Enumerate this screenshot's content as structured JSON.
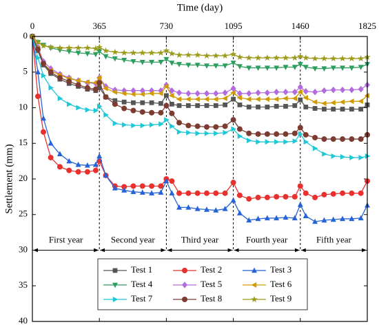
{
  "chart_data": {
    "type": "line",
    "x_label": "Time (day)",
    "y_label": "Settlement (mm)",
    "x": [
      0,
      30,
      60,
      100,
      150,
      200,
      250,
      300,
      345,
      365,
      400,
      450,
      500,
      550,
      600,
      650,
      700,
      730,
      760,
      800,
      850,
      900,
      950,
      1000,
      1050,
      1095,
      1130,
      1180,
      1230,
      1280,
      1330,
      1380,
      1430,
      1460,
      1490,
      1540,
      1590,
      1640,
      1690,
      1740,
      1790,
      1825
    ],
    "xlim": [
      0,
      1825
    ],
    "xticks": [
      0,
      365,
      730,
      1095,
      1460,
      1825
    ],
    "ylim": [
      0,
      40
    ],
    "yticks": [
      0,
      5,
      10,
      15,
      20,
      25,
      30,
      35,
      40
    ],
    "y_inverted": true,
    "x_axis_position": "top",
    "dividers": [
      365,
      730,
      1095,
      1460
    ],
    "periods": {
      "y": 30,
      "items": [
        {
          "label": "First year",
          "start": 0,
          "end": 365
        },
        {
          "label": "Second year",
          "start": 365,
          "end": 730
        },
        {
          "label": "Third year",
          "start": 730,
          "end": 1095
        },
        {
          "label": "Fourth year",
          "start": 1095,
          "end": 1460
        },
        {
          "label": "Fifth year",
          "start": 1460,
          "end": 1825
        }
      ]
    },
    "legend": "bottom-center",
    "series": [
      {
        "name": "Test 1",
        "color": "#555555",
        "marker": "square",
        "values": [
          0,
          2,
          4,
          5.2,
          6,
          6.6,
          7,
          7.4,
          7.6,
          7.2,
          8.5,
          9,
          9.2,
          9.3,
          9.3,
          9.3,
          9.4,
          8.3,
          9.5,
          9.7,
          9.7,
          9.7,
          9.7,
          9.7,
          9.6,
          8.8,
          9.6,
          9.9,
          9.9,
          9.9,
          9.8,
          9.8,
          9.7,
          8.9,
          9.9,
          10.1,
          10.2,
          10.2,
          10.2,
          10.2,
          10.2,
          9.6
        ]
      },
      {
        "name": "Test 2",
        "color": "#e8312f",
        "marker": "circle",
        "values": [
          0,
          8.4,
          13.4,
          17,
          18.3,
          18.8,
          19,
          19,
          18.8,
          17.5,
          19.5,
          21,
          21.1,
          21,
          21,
          21,
          21,
          20,
          20.3,
          22,
          22,
          22,
          22,
          22,
          22,
          20.5,
          22.3,
          22.8,
          22.6,
          22.6,
          22.5,
          22.5,
          22.5,
          21,
          22,
          22.6,
          22.2,
          22.1,
          22,
          22,
          22,
          20.3
        ]
      },
      {
        "name": "Test 3",
        "color": "#2563d6",
        "marker": "triangle-up",
        "values": [
          0,
          5,
          11.5,
          15,
          16.5,
          17.5,
          18,
          18.1,
          18,
          16.8,
          19.5,
          21.3,
          21.6,
          21.8,
          21.9,
          22,
          21.9,
          20.3,
          22,
          24,
          24,
          24.2,
          24.3,
          24.4,
          24.2,
          23,
          24.8,
          25.8,
          25.6,
          25.5,
          25.5,
          25.4,
          25.5,
          23.6,
          25.2,
          26,
          25.8,
          25.7,
          25.6,
          25.6,
          25.5,
          23.7
        ]
      },
      {
        "name": "Test 4",
        "color": "#2e9e5e",
        "marker": "triangle-down",
        "values": [
          0,
          0.8,
          1.2,
          1.6,
          1.9,
          2.1,
          2.3,
          2.4,
          2.5,
          2.1,
          2.8,
          3.1,
          3.3,
          3.5,
          3.6,
          3.6,
          3.6,
          3.2,
          3.7,
          3.9,
          4,
          4,
          4.1,
          4.1,
          4.1,
          3.7,
          4.2,
          4.4,
          4.4,
          4.4,
          4.4,
          4.3,
          4.3,
          3.9,
          4.3,
          4.5,
          4.5,
          4.4,
          4.4,
          4.4,
          4.3,
          3.9
        ]
      },
      {
        "name": "Test 5",
        "color": "#b36be0",
        "marker": "diamond",
        "values": [
          0,
          1.5,
          3.5,
          4.5,
          5.3,
          5.8,
          6.2,
          6.5,
          6.6,
          5.8,
          7,
          7.5,
          7.6,
          7.6,
          7.6,
          7.6,
          7.6,
          6.8,
          7.6,
          7.9,
          8,
          8,
          8,
          8,
          7.9,
          7.3,
          8,
          8,
          7.9,
          7.9,
          7.8,
          7.8,
          7.8,
          7.1,
          7.7,
          7.8,
          7.6,
          7.5,
          7.5,
          7.5,
          7.4,
          6.8
        ]
      },
      {
        "name": "Test 6",
        "color": "#d19a00",
        "marker": "triangle-left",
        "values": [
          0,
          1.6,
          3.8,
          4.8,
          5.4,
          5.9,
          6.2,
          6.4,
          6.5,
          5.8,
          7.3,
          7.8,
          8,
          8.1,
          8.1,
          8,
          8,
          7,
          8.3,
          8.8,
          8.8,
          8.8,
          8.8,
          8.8,
          8.7,
          7.9,
          8.6,
          8.8,
          8.8,
          8.8,
          8.8,
          8.7,
          8.7,
          7.8,
          8.6,
          9.2,
          9.4,
          9.3,
          9.2,
          9.1,
          9.1,
          8.3
        ]
      },
      {
        "name": "Test 7",
        "color": "#1ec8d6",
        "marker": "triangle-right",
        "values": [
          0,
          3,
          5.5,
          7.2,
          8.7,
          9.5,
          10,
          10.3,
          10.4,
          9.8,
          11,
          12.2,
          12.4,
          12.5,
          12.5,
          12.4,
          12.3,
          11.7,
          12.6,
          13.4,
          13.5,
          13.6,
          13.6,
          13.6,
          13.5,
          13,
          14,
          14.6,
          14.8,
          14.8,
          14.8,
          14.8,
          14.7,
          13.7,
          14.8,
          15.7,
          16.5,
          16.8,
          16.9,
          17,
          17,
          16.8
        ]
      },
      {
        "name": "Test 8",
        "color": "#7d3c32",
        "marker": "circle",
        "values": [
          0,
          1.8,
          3.8,
          5,
          5.8,
          6.3,
          6.8,
          7.2,
          7.4,
          6.5,
          8.5,
          9.5,
          10.1,
          10.4,
          10.6,
          10.7,
          10.7,
          9.7,
          10.8,
          12.1,
          12.5,
          12.6,
          12.7,
          12.7,
          12.6,
          11.7,
          13,
          13.6,
          13.7,
          13.7,
          13.7,
          13.7,
          13.6,
          12.8,
          13.8,
          14.2,
          14.4,
          14.4,
          14.4,
          14.4,
          14.4,
          13.8
        ]
      },
      {
        "name": "Test 9",
        "color": "#9b9a1a",
        "marker": "star",
        "values": [
          0,
          0.8,
          1.3,
          1.5,
          1.6,
          1.6,
          1.6,
          1.6,
          1.7,
          1.5,
          2,
          2.2,
          2.3,
          2.3,
          2.3,
          2.3,
          2.3,
          2,
          2.4,
          2.6,
          2.6,
          2.6,
          2.7,
          2.7,
          2.7,
          2.5,
          2.9,
          3,
          3,
          3,
          3,
          3,
          3,
          2.8,
          3,
          3.1,
          3.1,
          3.1,
          3.1,
          3.1,
          3.1,
          2.9
        ]
      }
    ]
  }
}
